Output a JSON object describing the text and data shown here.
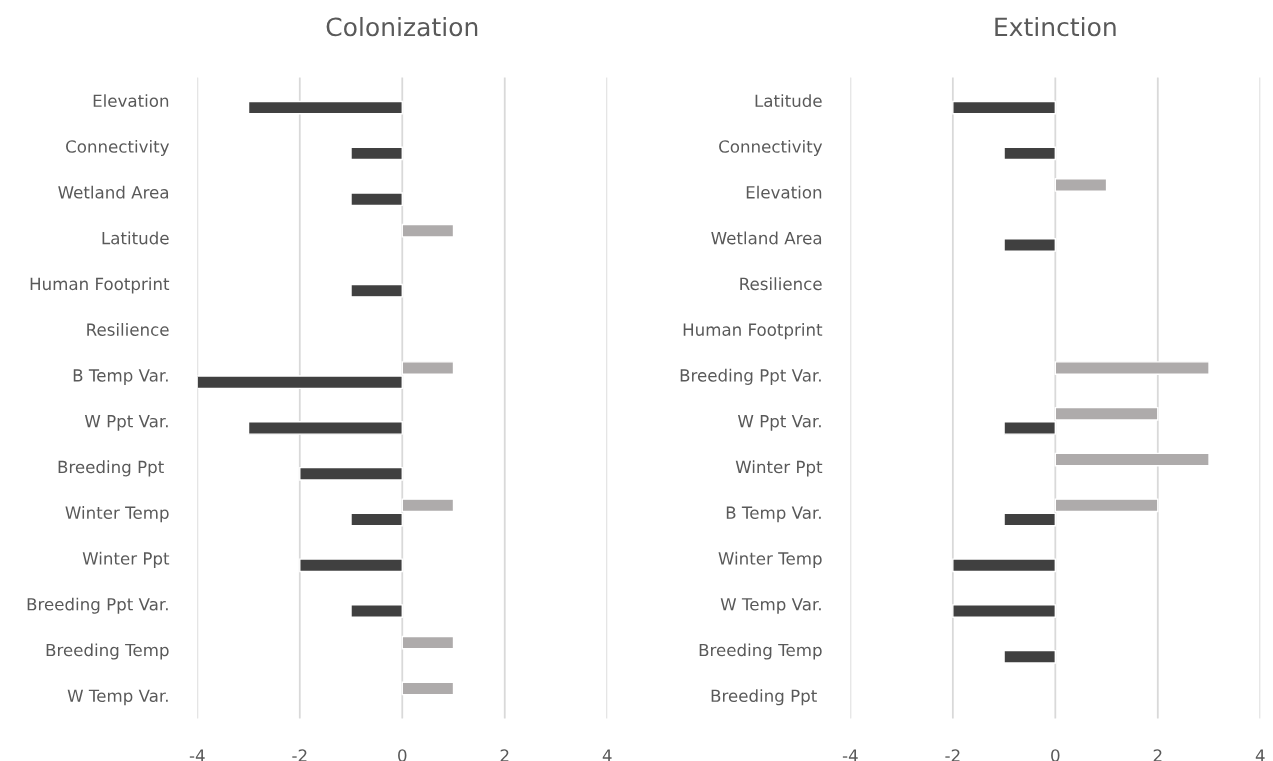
{
  "chart_data": [
    {
      "type": "bar",
      "orientation": "horizontal",
      "title": "Colonization",
      "grid": "x",
      "legend": false,
      "categories": [
        "Elevation",
        "Connectivity",
        "Wetland Area",
        "Latitude",
        "Human Footprint",
        "Resilience",
        "B Temp Var.",
        "W Ppt Var.",
        "Breeding Ppt ",
        "Winter Temp",
        "Winter Ppt",
        "Breeding Ppt Var.",
        "Breeding Temp",
        "W Temp Var."
      ],
      "xlim": [
        -4,
        4
      ],
      "xticks": [
        -4,
        -2,
        0,
        2,
        4
      ],
      "series": [
        {
          "color": "#aeabab",
          "values": [
            null,
            null,
            null,
            1,
            null,
            null,
            1,
            null,
            null,
            1,
            null,
            null,
            1,
            1
          ]
        },
        {
          "color": "#404040",
          "values": [
            -3,
            -1,
            -1,
            null,
            -1,
            null,
            -4,
            -3,
            -2,
            -1,
            -2,
            -1,
            null,
            null
          ]
        }
      ]
    },
    {
      "type": "bar",
      "orientation": "horizontal",
      "title": "Extinction",
      "grid": "x",
      "legend": false,
      "categories": [
        "Latitude",
        "Connectivity",
        "Elevation",
        "Wetland Area",
        "Resilience",
        "Human Footprint",
        "Breeding Ppt Var.",
        "W Ppt Var.",
        "Winter Ppt",
        "B Temp Var.",
        "Winter Temp",
        "W Temp Var.",
        "Breeding Temp",
        "Breeding Ppt "
      ],
      "xlim": [
        -4,
        4
      ],
      "xticks": [
        -4,
        -2,
        0,
        2,
        4
      ],
      "series": [
        {
          "color": "#aeabab",
          "values": [
            null,
            null,
            1,
            null,
            null,
            null,
            3,
            2,
            3,
            2,
            null,
            null,
            null,
            null
          ]
        },
        {
          "color": "#404040",
          "values": [
            -2,
            -1,
            null,
            -1,
            null,
            null,
            null,
            -1,
            null,
            -1,
            -2,
            -2,
            -1,
            null
          ]
        }
      ]
    }
  ]
}
